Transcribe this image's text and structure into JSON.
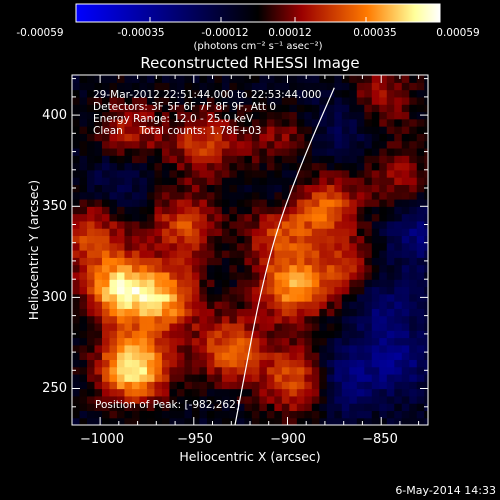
{
  "colorbar": {
    "tick_labels": [
      "-0.00059",
      "-0.00035",
      "-0.00012",
      "0.00012",
      "0.00035",
      "0.00059"
    ],
    "unit_label": "(photons cm⁻² s⁻¹ asec⁻²)",
    "colors": [
      "#0000ff",
      "#000000",
      "#9b0000",
      "#ff7a00",
      "#ffff9a",
      "#ffffff"
    ]
  },
  "chart_data": {
    "type": "heatmap",
    "title": "Reconstructed RHESSI Image",
    "xlabel": "Heliocentric X (arcsec)",
    "ylabel": "Heliocentric Y (arcsec)",
    "xlim": [
      -1015,
      -825
    ],
    "ylim": [
      230,
      422
    ],
    "x_ticks": [
      -1000,
      -950,
      -900,
      -850
    ],
    "y_ticks": [
      250,
      300,
      350,
      400
    ],
    "x_tick_labels": [
      "−1000",
      "−950",
      "−900",
      "−850"
    ],
    "y_tick_labels": [
      "250",
      "300",
      "350",
      "400"
    ],
    "value_range": [
      -0.00059,
      0.00059
    ],
    "hot_spots": [
      {
        "x": -982,
        "y": 262,
        "value": 0.00059
      },
      {
        "x": -990,
        "y": 305,
        "value": 0.0005
      },
      {
        "x": -965,
        "y": 300,
        "value": 0.00042
      },
      {
        "x": -930,
        "y": 272,
        "value": 0.00035
      },
      {
        "x": -895,
        "y": 255,
        "value": 0.00035
      },
      {
        "x": -955,
        "y": 340,
        "value": 0.0003
      },
      {
        "x": -905,
        "y": 335,
        "value": 0.00026
      },
      {
        "x": -880,
        "y": 350,
        "value": 0.00035
      },
      {
        "x": -898,
        "y": 305,
        "value": 0.0004
      },
      {
        "x": -870,
        "y": 315,
        "value": 0.00025
      },
      {
        "x": -985,
        "y": 390,
        "value": 0.00024
      },
      {
        "x": -945,
        "y": 385,
        "value": 0.00028
      },
      {
        "x": -905,
        "y": 385,
        "value": 0.0002
      },
      {
        "x": -850,
        "y": 410,
        "value": 0.00022
      },
      {
        "x": -840,
        "y": 365,
        "value": 0.00018
      },
      {
        "x": -1005,
        "y": 335,
        "value": 0.00028
      }
    ],
    "cool_spots": [
      {
        "x": -870,
        "y": 255,
        "value": -0.00025
      },
      {
        "x": -840,
        "y": 265,
        "value": -0.00022
      },
      {
        "x": -850,
        "y": 295,
        "value": -0.0002
      },
      {
        "x": -830,
        "y": 335,
        "value": -0.00022
      },
      {
        "x": -900,
        "y": 365,
        "value": -0.00012
      },
      {
        "x": -990,
        "y": 365,
        "value": -0.00015
      },
      {
        "x": -870,
        "y": 395,
        "value": -0.00014
      }
    ],
    "limb_curve": [
      {
        "x": -928,
        "y": 230
      },
      {
        "x": -922,
        "y": 262
      },
      {
        "x": -915,
        "y": 300
      },
      {
        "x": -905,
        "y": 340
      },
      {
        "x": -890,
        "y": 380
      },
      {
        "x": -875,
        "y": 415
      }
    ],
    "annotations": [
      "29-Mar-2012 22:51:44.000 to 22:53:44.000",
      "Detectors: 3F 5F 6F 7F 8F 9F, Att 0",
      "Energy Range: 12.0 - 25.0 keV",
      "Clean     Total counts: 1.78E+03"
    ],
    "peak_label": "Position of Peak: [-982,262]"
  },
  "footer": {
    "date": "6-May-2014 14:33"
  }
}
